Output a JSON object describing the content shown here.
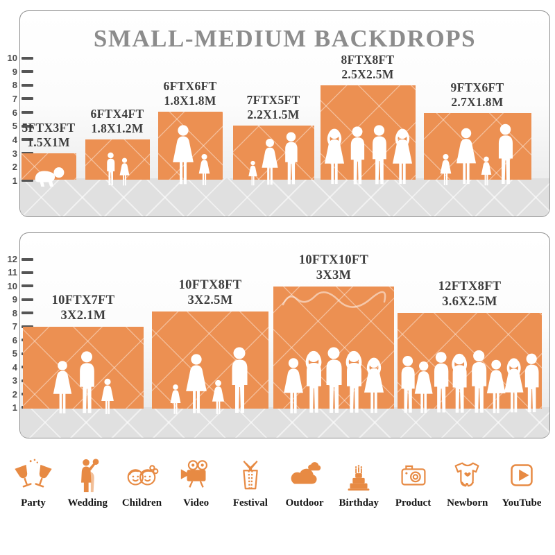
{
  "title": "SMALL-MEDIUM BACKDROPS",
  "top_panel": {
    "ruler_ticks": [
      "10",
      "9",
      "8",
      "7",
      "6",
      "5",
      "4",
      "3",
      "2",
      "1"
    ],
    "backdrops": [
      {
        "size_ft": "5FTX3FT",
        "size_m": "1.5X1M"
      },
      {
        "size_ft": "6FTX4FT",
        "size_m": "1.8X1.2M"
      },
      {
        "size_ft": "6FTX6FT",
        "size_m": "1.8X1.8M"
      },
      {
        "size_ft": "7FTX5FT",
        "size_m": "2.2X1.5M"
      },
      {
        "size_ft": "8FTX8FT",
        "size_m": "2.5X2.5M"
      },
      {
        "size_ft": "9FTX6FT",
        "size_m": "2.7X1.8M"
      }
    ]
  },
  "bottom_panel": {
    "ruler_ticks": [
      "12",
      "11",
      "10",
      "9",
      "8",
      "7",
      "6",
      "5",
      "4",
      "3",
      "2",
      "1"
    ],
    "backdrops": [
      {
        "size_ft": "10FTX7FT",
        "size_m": "3X2.1M"
      },
      {
        "size_ft": "10FTX8FT",
        "size_m": "3X2.5M"
      },
      {
        "size_ft": "10FTX10FT",
        "size_m": "3X3M"
      },
      {
        "size_ft": "12FTX8FT",
        "size_m": "3.6X2.5M"
      }
    ]
  },
  "categories": [
    {
      "label": "Party",
      "icon": "party-icon"
    },
    {
      "label": "Wedding",
      "icon": "wedding-icon"
    },
    {
      "label": "Children",
      "icon": "children-icon"
    },
    {
      "label": "Video",
      "icon": "video-icon"
    },
    {
      "label": "Festival",
      "icon": "festival-icon"
    },
    {
      "label": "Outdoor",
      "icon": "outdoor-icon"
    },
    {
      "label": "Birthday",
      "icon": "birthday-icon"
    },
    {
      "label": "Product",
      "icon": "product-icon"
    },
    {
      "label": "Newborn",
      "icon": "newborn-icon"
    },
    {
      "label": "YouTube",
      "icon": "youtube-icon"
    }
  ],
  "colors": {
    "backdrop_orange": "#EC9052",
    "icon_orange": "#E78A43",
    "title_gray": "#8C8C8C",
    "label_dark": "#3D3D3D"
  }
}
